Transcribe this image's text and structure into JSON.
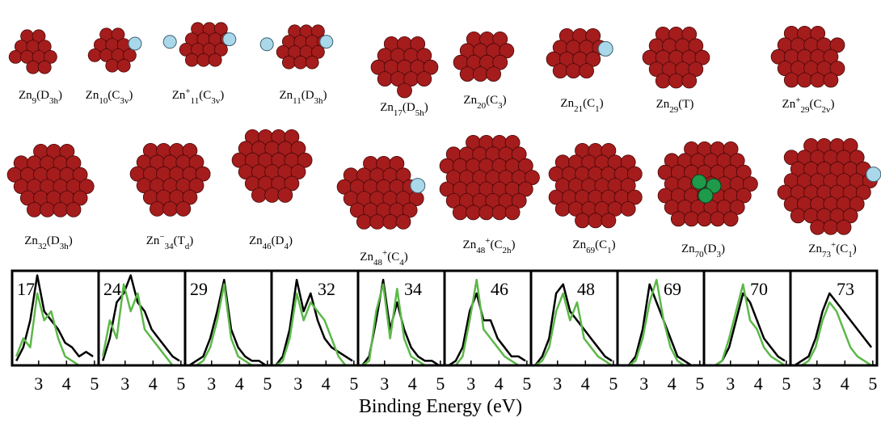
{
  "structures": [
    {
      "element": "Zn",
      "size": "9",
      "group": "D",
      "group_sub": "3h"
    },
    {
      "element": "Zn",
      "size": "10",
      "group": "C",
      "group_sub": "3v"
    },
    {
      "element": "Zn",
      "charge_before": "+",
      "size": "11",
      "group": "C",
      "group_sub": "3v"
    },
    {
      "element": "Zn",
      "size": "11",
      "group": "D",
      "group_sub": "3h"
    },
    {
      "element": "Zn",
      "size": "17",
      "group": "D",
      "group_sub": "5h"
    },
    {
      "element": "Zn",
      "size": "20",
      "group": "C",
      "group_sub": "3"
    },
    {
      "element": "Zn",
      "size": "21",
      "group": "C",
      "group_sub": "1"
    },
    {
      "element": "Zn",
      "size": "29",
      "group": "T"
    },
    {
      "element": "Zn",
      "charge_before": "+",
      "size": "29",
      "group": "C",
      "group_sub": "2v"
    },
    {
      "element": "Zn",
      "size": "32",
      "group": "D",
      "group_sub": "3h"
    },
    {
      "element": "Zn",
      "charge_before": "−",
      "size": "34",
      "group": "T",
      "group_sub": "d"
    },
    {
      "element": "Zn",
      "size": "46",
      "group": "D",
      "group_sub": "4"
    },
    {
      "element": "Zn",
      "size": "48",
      "charge_after": "+",
      "group": "C",
      "group_sub": "4"
    },
    {
      "element": "Zn",
      "size": "48",
      "charge_after": "+",
      "group": "C",
      "group_sub": "2h"
    },
    {
      "element": "Zn",
      "size": "69",
      "group": "C",
      "group_sub": "1"
    },
    {
      "element": "Zn",
      "size": "70",
      "group": "D",
      "group_sub": "3"
    },
    {
      "element": "Zn",
      "size": "73",
      "charge_after": "+",
      "group": "C",
      "group_sub": "1"
    }
  ],
  "figure": {
    "xlabel": "Binding Energy (eV)"
  },
  "chart_data": [
    {
      "type": "line",
      "title": "17",
      "x": [
        2.2,
        2.45,
        2.7,
        2.95,
        3.2,
        3.45,
        3.7,
        3.95,
        4.2,
        4.45,
        4.7,
        4.95
      ],
      "xlim": [
        2.05,
        5.15
      ],
      "xticks": [
        3,
        4,
        5
      ],
      "ylim": [
        0,
        1.05
      ],
      "series": [
        {
          "color": "#000000",
          "values": [
            0.05,
            0.2,
            0.5,
            1.0,
            0.6,
            0.5,
            0.4,
            0.25,
            0.2,
            0.1,
            0.15,
            0.1
          ]
        },
        {
          "color": "#5cb848",
          "values": [
            0.1,
            0.3,
            0.2,
            0.8,
            0.5,
            0.6,
            0.3,
            0.1,
            0.05,
            0,
            0,
            0
          ]
        }
      ]
    },
    {
      "type": "line",
      "title": "24",
      "x": [
        2.2,
        2.45,
        2.7,
        2.95,
        3.2,
        3.45,
        3.7,
        3.95,
        4.2,
        4.45,
        4.7,
        4.95
      ],
      "xlim": [
        2.05,
        5.15
      ],
      "xticks": [
        3,
        4,
        5
      ],
      "ylim": [
        0,
        1.05
      ],
      "series": [
        {
          "color": "#000000",
          "values": [
            0.05,
            0.3,
            0.7,
            0.8,
            1.0,
            0.7,
            0.6,
            0.4,
            0.3,
            0.2,
            0.1,
            0.05
          ]
        },
        {
          "color": "#5cb848",
          "values": [
            0.1,
            0.5,
            0.3,
            0.9,
            0.6,
            0.8,
            0.4,
            0.3,
            0.2,
            0.1,
            0,
            0
          ]
        }
      ]
    },
    {
      "type": "line",
      "title": "29",
      "x": [
        2.2,
        2.45,
        2.7,
        2.95,
        3.2,
        3.45,
        3.7,
        3.95,
        4.2,
        4.45,
        4.7,
        4.95
      ],
      "xlim": [
        2.05,
        5.15
      ],
      "xticks": [
        3,
        4,
        5
      ],
      "ylim": [
        0,
        1.05
      ],
      "series": [
        {
          "color": "#000000",
          "values": [
            0,
            0.05,
            0.1,
            0.3,
            0.6,
            0.95,
            0.4,
            0.2,
            0.1,
            0.05,
            0.05,
            0
          ]
        },
        {
          "color": "#5cb848",
          "values": [
            0,
            0,
            0.05,
            0.2,
            0.5,
            0.9,
            0.3,
            0.1,
            0.05,
            0,
            0,
            0
          ]
        }
      ]
    },
    {
      "type": "line",
      "title": "32",
      "x": [
        2.2,
        2.45,
        2.7,
        2.95,
        3.2,
        3.45,
        3.7,
        3.95,
        4.2,
        4.45,
        4.7,
        4.95
      ],
      "xlim": [
        2.05,
        5.15
      ],
      "xticks": [
        3,
        4,
        5
      ],
      "ylim": [
        0,
        1.05
      ],
      "series": [
        {
          "color": "#000000",
          "values": [
            0,
            0.1,
            0.4,
            0.95,
            0.6,
            0.8,
            0.5,
            0.3,
            0.2,
            0.15,
            0.1,
            0.05
          ]
        },
        {
          "color": "#5cb848",
          "values": [
            0,
            0.05,
            0.3,
            0.8,
            0.5,
            0.7,
            0.6,
            0.5,
            0.3,
            0.1,
            0,
            0
          ]
        }
      ]
    },
    {
      "type": "line",
      "title": "34",
      "x": [
        2.2,
        2.45,
        2.7,
        2.95,
        3.2,
        3.45,
        3.7,
        3.95,
        4.2,
        4.45,
        4.7,
        4.95
      ],
      "xlim": [
        2.05,
        5.15
      ],
      "xticks": [
        3,
        4,
        5
      ],
      "ylim": [
        0,
        1.05
      ],
      "series": [
        {
          "color": "#000000",
          "values": [
            0,
            0.1,
            0.5,
            0.95,
            0.4,
            0.7,
            0.4,
            0.2,
            0.1,
            0.05,
            0.05,
            0
          ]
        },
        {
          "color": "#5cb848",
          "values": [
            0,
            0.05,
            0.6,
            0.9,
            0.3,
            0.85,
            0.3,
            0.1,
            0.05,
            0,
            0,
            0
          ]
        }
      ]
    },
    {
      "type": "line",
      "title": "46",
      "x": [
        2.2,
        2.45,
        2.7,
        2.95,
        3.2,
        3.45,
        3.7,
        3.95,
        4.2,
        4.45,
        4.7,
        4.95
      ],
      "xlim": [
        2.05,
        5.15
      ],
      "xticks": [
        3,
        4,
        5
      ],
      "ylim": [
        0,
        1.05
      ],
      "series": [
        {
          "color": "#000000",
          "values": [
            0,
            0.05,
            0.2,
            0.6,
            0.8,
            0.5,
            0.5,
            0.3,
            0.2,
            0.1,
            0.1,
            0.05
          ]
        },
        {
          "color": "#5cb848",
          "values": [
            0,
            0,
            0.1,
            0.5,
            0.95,
            0.4,
            0.3,
            0.2,
            0.1,
            0.05,
            0,
            0
          ]
        }
      ]
    },
    {
      "type": "line",
      "title": "48",
      "x": [
        2.2,
        2.45,
        2.7,
        2.95,
        3.2,
        3.45,
        3.7,
        3.95,
        4.2,
        4.45,
        4.7,
        4.95
      ],
      "xlim": [
        2.05,
        5.15
      ],
      "xticks": [
        3,
        4,
        5
      ],
      "ylim": [
        0,
        1.05
      ],
      "series": [
        {
          "color": "#000000",
          "values": [
            0,
            0.1,
            0.3,
            0.8,
            0.9,
            0.6,
            0.5,
            0.4,
            0.3,
            0.2,
            0.1,
            0.05
          ]
        },
        {
          "color": "#5cb848",
          "values": [
            0,
            0.05,
            0.2,
            0.6,
            0.8,
            0.5,
            0.7,
            0.3,
            0.2,
            0.1,
            0.05,
            0
          ]
        }
      ]
    },
    {
      "type": "line",
      "title": "69",
      "x": [
        2.2,
        2.45,
        2.7,
        2.95,
        3.2,
        3.45,
        3.7,
        3.95,
        4.2,
        4.45,
        4.7,
        4.95
      ],
      "xlim": [
        2.05,
        5.15
      ],
      "xticks": [
        3,
        4,
        5
      ],
      "ylim": [
        0,
        1.05
      ],
      "series": [
        {
          "color": "#000000",
          "values": [
            0,
            0,
            0.1,
            0.4,
            0.9,
            0.7,
            0.5,
            0.3,
            0.1,
            0.05,
            0,
            0
          ]
        },
        {
          "color": "#5cb848",
          "values": [
            0,
            0,
            0.05,
            0.3,
            0.7,
            0.95,
            0.5,
            0.2,
            0.05,
            0,
            0,
            0
          ]
        }
      ]
    },
    {
      "type": "line",
      "title": "70",
      "x": [
        2.2,
        2.45,
        2.7,
        2.95,
        3.2,
        3.45,
        3.7,
        3.95,
        4.2,
        4.45,
        4.7,
        4.95
      ],
      "xlim": [
        2.05,
        5.15
      ],
      "xticks": [
        3,
        4,
        5
      ],
      "ylim": [
        0,
        1.05
      ],
      "series": [
        {
          "color": "#000000",
          "values": [
            0,
            0,
            0.05,
            0.2,
            0.5,
            0.8,
            0.7,
            0.5,
            0.3,
            0.2,
            0.1,
            0.05
          ]
        },
        {
          "color": "#5cb848",
          "values": [
            0,
            0,
            0.05,
            0.3,
            0.6,
            0.9,
            0.5,
            0.4,
            0.2,
            0.1,
            0.05,
            0
          ]
        }
      ]
    },
    {
      "type": "line",
      "title": "73",
      "x": [
        2.2,
        2.45,
        2.7,
        2.95,
        3.2,
        3.45,
        3.7,
        3.95,
        4.2,
        4.45,
        4.7,
        4.95
      ],
      "xlim": [
        2.05,
        5.15
      ],
      "xticks": [
        3,
        4,
        5
      ],
      "ylim": [
        0,
        1.05
      ],
      "series": [
        {
          "color": "#000000",
          "values": [
            0,
            0.05,
            0.1,
            0.3,
            0.6,
            0.8,
            0.7,
            0.6,
            0.5,
            0.4,
            0.3,
            0.2
          ]
        },
        {
          "color": "#5cb848",
          "values": [
            0,
            0,
            0.05,
            0.2,
            0.5,
            0.7,
            0.6,
            0.4,
            0.2,
            0.1,
            0.05,
            0
          ]
        }
      ]
    }
  ]
}
